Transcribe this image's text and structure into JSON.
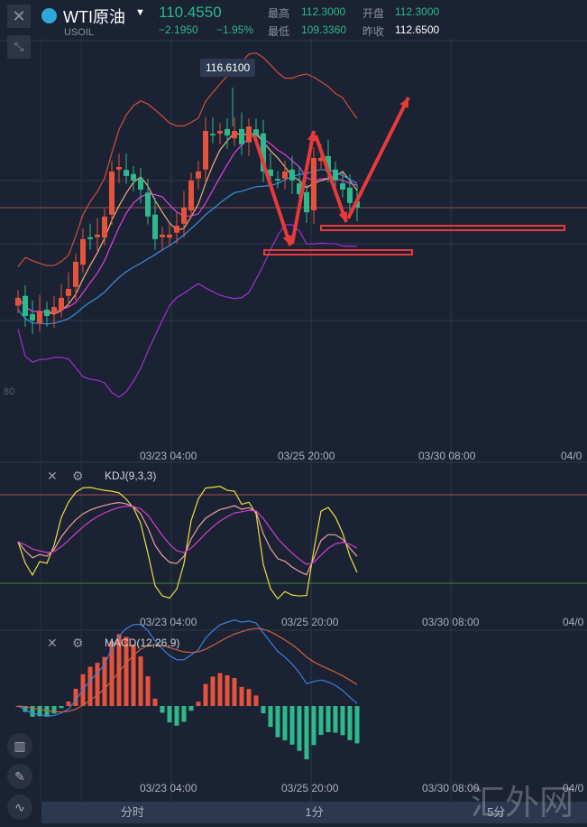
{
  "header": {
    "symbol": "WTI原油",
    "code": "USOIL",
    "price": "110.4550",
    "change": "−2.1950",
    "change_pct": "−1.95%",
    "high_label": "最高",
    "high": "112.3000",
    "open_label": "开盘",
    "open": "112.3000",
    "low_label": "最低",
    "low": "109.3360",
    "prev_label": "昨收",
    "prev": "112.6500"
  },
  "main": {
    "max_label": "116.6100",
    "left_label": "80"
  },
  "time_labels": [
    "03/23 04:00",
    "03/25 20:00",
    "03/30 08:00",
    "04/0"
  ],
  "kdj": {
    "label": "KDJ(9,3,3)"
  },
  "macd": {
    "label": "MACD(12,26,9)"
  },
  "tabs": [
    "分时",
    "1分",
    "5分"
  ],
  "watermark": "汇外网",
  "colors": {
    "up": "#e5533c",
    "down": "#2db98b",
    "bg": "#1b2233"
  },
  "chart_data": {
    "type": "candlestick",
    "title": "WTI原油 USOIL",
    "closes": [
      105.83,
      104.9,
      104.67,
      105.13,
      104.9,
      105.36,
      105.83,
      106.29,
      107.68,
      108.84,
      108.84,
      109.07,
      110.0,
      112.31,
      112.54,
      112.08,
      111.85,
      111.38,
      110.0,
      108.84,
      109.07,
      109.07,
      109.53,
      110.46,
      111.85,
      112.31,
      114.39,
      114.16,
      114.39,
      114.16,
      114.39,
      113.7,
      114.62,
      114.16,
      112.31,
      112.08,
      111.85,
      112.31,
      111.85,
      111.15,
      110.22,
      113.0,
      113.0,
      112.31,
      111.85,
      111.38,
      110.69,
      110.455
    ],
    "high_marker": 116.61
  }
}
